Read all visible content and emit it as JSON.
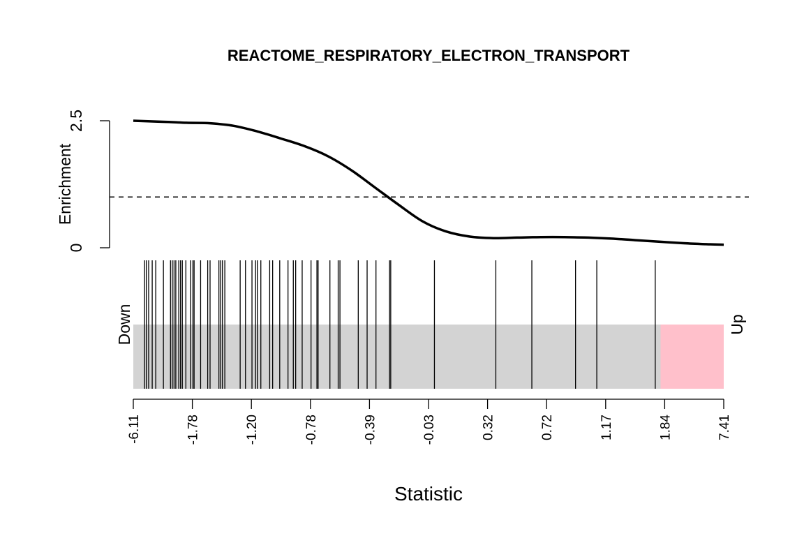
{
  "chart_data": {
    "type": "barcode",
    "title": "REACTOME_RESPIRATORY_ELECTRON_TRANSPORT",
    "xlabel": "Statistic",
    "enrichment": {
      "ylabel": "Enrichment",
      "ylim": [
        0,
        2.5
      ],
      "yticks": [
        "0",
        "2.5"
      ],
      "reference_line": 1.0,
      "curve": [
        {
          "x": 0.0,
          "y": 2.5
        },
        {
          "x": 0.05,
          "y": 2.48
        },
        {
          "x": 0.09,
          "y": 2.46
        },
        {
          "x": 0.13,
          "y": 2.45
        },
        {
          "x": 0.17,
          "y": 2.4
        },
        {
          "x": 0.21,
          "y": 2.29
        },
        {
          "x": 0.25,
          "y": 2.15
        },
        {
          "x": 0.29,
          "y": 2.0
        },
        {
          "x": 0.33,
          "y": 1.8
        },
        {
          "x": 0.37,
          "y": 1.52
        },
        {
          "x": 0.41,
          "y": 1.18
        },
        {
          "x": 0.45,
          "y": 0.84
        },
        {
          "x": 0.49,
          "y": 0.52
        },
        {
          "x": 0.53,
          "y": 0.32
        },
        {
          "x": 0.57,
          "y": 0.22
        },
        {
          "x": 0.61,
          "y": 0.19
        },
        {
          "x": 0.65,
          "y": 0.2
        },
        {
          "x": 0.69,
          "y": 0.21
        },
        {
          "x": 0.73,
          "y": 0.21
        },
        {
          "x": 0.77,
          "y": 0.2
        },
        {
          "x": 0.81,
          "y": 0.18
        },
        {
          "x": 0.85,
          "y": 0.15
        },
        {
          "x": 0.89,
          "y": 0.12
        },
        {
          "x": 0.93,
          "y": 0.09
        },
        {
          "x": 0.97,
          "y": 0.07
        },
        {
          "x": 1.0,
          "y": 0.06
        }
      ]
    },
    "barcode": {
      "xtick_labels": [
        "-6.11",
        "-1.78",
        "-1.20",
        "-0.78",
        "-0.39",
        "-0.03",
        "0.32",
        "0.72",
        "1.17",
        "1.84",
        "7.41"
      ],
      "down_label": "Down",
      "up_label": "Up",
      "down_region_end": 0.103,
      "up_region_start": 0.893,
      "colors": {
        "down": "#add8e6",
        "middle": "#d3d3d3",
        "up": "#ffc0cb",
        "bar": "#000000"
      },
      "bars": [
        0.019,
        0.022,
        0.026,
        0.032,
        0.038,
        0.051,
        0.063,
        0.066,
        0.069,
        0.072,
        0.077,
        0.08,
        0.083,
        0.089,
        0.097,
        0.101,
        0.103,
        0.114,
        0.126,
        0.13,
        0.145,
        0.148,
        0.151,
        0.155,
        0.181,
        0.19,
        0.201,
        0.207,
        0.21,
        0.216,
        0.231,
        0.236,
        0.248,
        0.262,
        0.271,
        0.275,
        0.286,
        0.301,
        0.311,
        0.313,
        0.333,
        0.347,
        0.35,
        0.381,
        0.396,
        0.411,
        0.434,
        0.436,
        0.51,
        0.614,
        0.675,
        0.749,
        0.785,
        0.884
      ]
    }
  }
}
